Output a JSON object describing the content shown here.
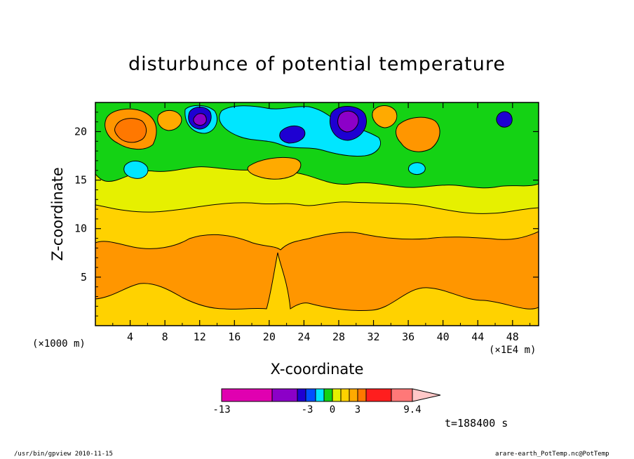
{
  "chart_data": {
    "type": "heatmap",
    "title": "disturbunce of potential temperature",
    "xlabel": "X-coordinate",
    "ylabel": "Z-coordinate",
    "x_unit_label": "(×1000 m)",
    "x_scale_label": "(×1E4 m)",
    "xlim": [
      0,
      51
    ],
    "ylim": [
      0,
      23
    ],
    "x_ticks": [
      4,
      8,
      12,
      16,
      20,
      24,
      28,
      32,
      36,
      40,
      44,
      48
    ],
    "y_ticks": [
      5,
      10,
      15,
      20
    ],
    "colorbar": {
      "tick_labels": [
        "-13",
        "-3",
        "0",
        "3",
        "9.4"
      ],
      "tick_values": [
        -13,
        -3,
        0,
        3,
        9.4
      ],
      "colors": [
        "#e000b0",
        "#8c00c8",
        "#1e00d2",
        "#0050ff",
        "#00e6ff",
        "#14d214",
        "#e6f000",
        "#ffd200",
        "#ffaa00",
        "#ff7800",
        "#ff1e1e",
        "#ff7878",
        "#ffc8c8"
      ]
    },
    "layers": [
      {
        "range": "band 1",
        "color": "#ffd200"
      },
      {
        "range": "band 2",
        "color": "#ff9600"
      },
      {
        "range": "band 3",
        "color": "#e6f000"
      },
      {
        "range": "band 4",
        "color": "#14d214"
      },
      {
        "range": "band 5",
        "color": "#00e6ff"
      },
      {
        "range": "band 6",
        "color": "#1e00d2"
      },
      {
        "range": "band 7",
        "color": "#8c00c8"
      }
    ],
    "time_label": "t=188400 s"
  },
  "footer": {
    "left": "/usr/bin/gpview  2010-11-15",
    "right": "arare-earth_PotTemp.nc@PotTemp"
  }
}
